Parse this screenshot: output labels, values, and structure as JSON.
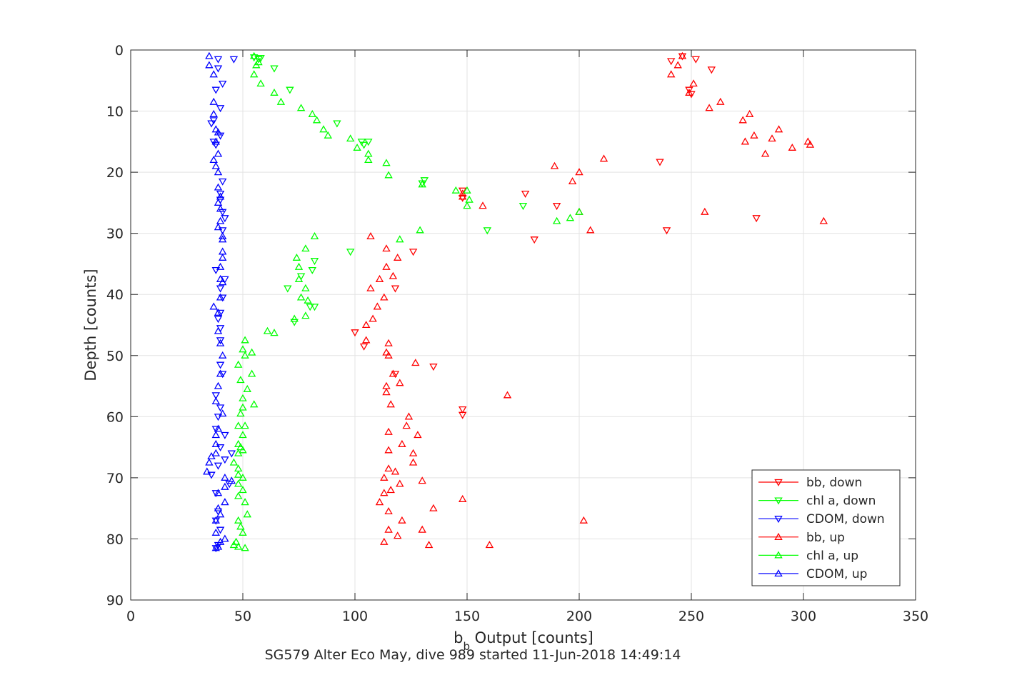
{
  "chart_data": {
    "type": "scatter",
    "caption": "SG579 Alter Eco May, dive 989 started 11-Jun-2018 14:49:14",
    "xlabel_main": "b",
    "xlabel_sub": "b",
    "xlabel_rest": " Output [counts]",
    "ylabel": "Depth [counts]",
    "xlim": [
      0,
      350
    ],
    "ylim": [
      0,
      90
    ],
    "y_reversed": true,
    "xticks": [
      0,
      50,
      100,
      150,
      200,
      250,
      300,
      350
    ],
    "yticks": [
      0,
      10,
      20,
      30,
      40,
      50,
      60,
      70,
      80,
      90
    ],
    "grid": true,
    "legend_position": "bottom-right",
    "series": [
      {
        "name": "bb, down",
        "color": "#ff0000",
        "marker": "triangle-down",
        "points": [
          [
            246,
            1
          ],
          [
            252,
            1.5
          ],
          [
            241,
            1.8
          ],
          [
            259,
            3.2
          ],
          [
            249,
            6.5
          ],
          [
            250,
            7.2
          ],
          [
            236,
            18.3
          ],
          [
            176,
            23.5
          ],
          [
            148,
            23
          ],
          [
            148,
            24.2
          ],
          [
            190,
            25.5
          ],
          [
            239,
            29.5
          ],
          [
            180,
            31
          ],
          [
            279,
            27.5
          ],
          [
            126,
            33
          ],
          [
            118,
            39
          ],
          [
            100,
            46.2
          ],
          [
            104,
            48.5
          ],
          [
            135,
            51.8
          ],
          [
            118,
            53
          ],
          [
            148,
            58.8
          ],
          [
            148,
            59.7
          ]
        ]
      },
      {
        "name": "chl a, down",
        "color": "#00ff00",
        "marker": "triangle-down",
        "points": [
          [
            55,
            1.2
          ],
          [
            58,
            1.3
          ],
          [
            57,
            1.5
          ],
          [
            64,
            3
          ],
          [
            71,
            6.5
          ],
          [
            92,
            12
          ],
          [
            103,
            15
          ],
          [
            106,
            15
          ],
          [
            104,
            15.5
          ],
          [
            98,
            33
          ],
          [
            82,
            34.5
          ],
          [
            81,
            36
          ],
          [
            76,
            37
          ],
          [
            70,
            39
          ],
          [
            80,
            42
          ],
          [
            82,
            42
          ],
          [
            73,
            44.5
          ],
          [
            159,
            29.5
          ],
          [
            175,
            25.5
          ],
          [
            131,
            21.3
          ],
          [
            130,
            21.8
          ]
        ]
      },
      {
        "name": "CDOM, down",
        "color": "#0000ff",
        "marker": "triangle-down",
        "points": [
          [
            39,
            1.5
          ],
          [
            46,
            1.5
          ],
          [
            39,
            3
          ],
          [
            41,
            5.5
          ],
          [
            38,
            6.5
          ],
          [
            40,
            9.5
          ],
          [
            37,
            11.5
          ],
          [
            36,
            12
          ],
          [
            40,
            14
          ],
          [
            37,
            15
          ],
          [
            38,
            15.5
          ],
          [
            41,
            21.5
          ],
          [
            40,
            23.5
          ],
          [
            40,
            24.5
          ],
          [
            41,
            26.5
          ],
          [
            42,
            27.5
          ],
          [
            41,
            29.5
          ],
          [
            38,
            36
          ],
          [
            42,
            37.5
          ],
          [
            40,
            39
          ],
          [
            41,
            40.5
          ],
          [
            40,
            43
          ],
          [
            39,
            44
          ],
          [
            40,
            45.5
          ],
          [
            40,
            47.5
          ],
          [
            40,
            51.5
          ],
          [
            41,
            53
          ],
          [
            38,
            56.5
          ],
          [
            40,
            58.5
          ],
          [
            39,
            60
          ],
          [
            38,
            62
          ],
          [
            42,
            63
          ],
          [
            40,
            65
          ],
          [
            45,
            66
          ],
          [
            42,
            67
          ],
          [
            39,
            68
          ],
          [
            36,
            69.5
          ],
          [
            44,
            71
          ],
          [
            38,
            72.5
          ],
          [
            39,
            75.5
          ],
          [
            38,
            77
          ],
          [
            40,
            78.5
          ],
          [
            39,
            81
          ],
          [
            38,
            81.5
          ]
        ]
      },
      {
        "name": "bb, up",
        "color": "#ff0000",
        "marker": "triangle-up",
        "points": [
          [
            246,
            1
          ],
          [
            244,
            2.5
          ],
          [
            241,
            4
          ],
          [
            251,
            5.5
          ],
          [
            249,
            7
          ],
          [
            258,
            9.5
          ],
          [
            263,
            8.5
          ],
          [
            276,
            10.5
          ],
          [
            273,
            11.5
          ],
          [
            289,
            13
          ],
          [
            278,
            14
          ],
          [
            286,
            14.5
          ],
          [
            274,
            15
          ],
          [
            295,
            16
          ],
          [
            283,
            17
          ],
          [
            302,
            15
          ],
          [
            303,
            15.5
          ],
          [
            211,
            17.8
          ],
          [
            189,
            19
          ],
          [
            200,
            20
          ],
          [
            197,
            21.5
          ],
          [
            148,
            23.5
          ],
          [
            148,
            24
          ],
          [
            157,
            25.5
          ],
          [
            256,
            26.5
          ],
          [
            200,
            26.5
          ],
          [
            309,
            28
          ],
          [
            205,
            29.5
          ],
          [
            107,
            30.5
          ],
          [
            114,
            32.5
          ],
          [
            119,
            34
          ],
          [
            114,
            35.5
          ],
          [
            117,
            37
          ],
          [
            111,
            37.5
          ],
          [
            107,
            39
          ],
          [
            113,
            40.5
          ],
          [
            110,
            42
          ],
          [
            108,
            44
          ],
          [
            105,
            45
          ],
          [
            105,
            47.5
          ],
          [
            115,
            48
          ],
          [
            115,
            50
          ],
          [
            114,
            49.5
          ],
          [
            127,
            51.2
          ],
          [
            117,
            53
          ],
          [
            120,
            54.5
          ],
          [
            114,
            55
          ],
          [
            114,
            56
          ],
          [
            168,
            56.5
          ],
          [
            116,
            58
          ],
          [
            124,
            60
          ],
          [
            123,
            61.5
          ],
          [
            115,
            62.5
          ],
          [
            128,
            63
          ],
          [
            121,
            64.5
          ],
          [
            115,
            65.5
          ],
          [
            126,
            66
          ],
          [
            126,
            67.5
          ],
          [
            115,
            68.5
          ],
          [
            118,
            69
          ],
          [
            113,
            70
          ],
          [
            130,
            70.5
          ],
          [
            120,
            71
          ],
          [
            116,
            72
          ],
          [
            113,
            72.5
          ],
          [
            111,
            74
          ],
          [
            148,
            73.5
          ],
          [
            135,
            75
          ],
          [
            115,
            75.5
          ],
          [
            121,
            77
          ],
          [
            202,
            77
          ],
          [
            115,
            78.5
          ],
          [
            130,
            78.5
          ],
          [
            119,
            79.5
          ],
          [
            113,
            80.5
          ],
          [
            133,
            81
          ],
          [
            160,
            81
          ]
        ]
      },
      {
        "name": "chl a, up",
        "color": "#00ff00",
        "marker": "triangle-up",
        "points": [
          [
            55,
            1
          ],
          [
            57,
            2
          ],
          [
            56,
            2.5
          ],
          [
            55,
            4
          ],
          [
            58,
            5.5
          ],
          [
            64,
            7
          ],
          [
            67,
            8.5
          ],
          [
            76,
            9.5
          ],
          [
            81,
            10.5
          ],
          [
            83,
            11.5
          ],
          [
            86,
            13
          ],
          [
            88,
            14
          ],
          [
            98,
            14.5
          ],
          [
            101,
            16
          ],
          [
            106,
            17
          ],
          [
            106,
            18
          ],
          [
            114,
            18.5
          ],
          [
            115,
            20.5
          ],
          [
            130,
            22
          ],
          [
            145,
            23
          ],
          [
            150,
            23
          ],
          [
            151,
            24.5
          ],
          [
            150,
            25.5
          ],
          [
            200,
            26.5
          ],
          [
            196,
            27.5
          ],
          [
            190,
            28
          ],
          [
            129,
            29.5
          ],
          [
            120,
            31
          ],
          [
            82,
            30.5
          ],
          [
            78,
            32.5
          ],
          [
            74,
            34
          ],
          [
            75,
            35.5
          ],
          [
            75,
            37.5
          ],
          [
            78,
            39
          ],
          [
            76,
            40.5
          ],
          [
            79,
            41
          ],
          [
            78,
            43.5
          ],
          [
            73,
            44
          ],
          [
            61,
            46
          ],
          [
            64,
            46.3
          ],
          [
            51,
            47.5
          ],
          [
            50,
            49
          ],
          [
            54,
            49.5
          ],
          [
            51,
            50
          ],
          [
            48,
            51.5
          ],
          [
            54,
            53
          ],
          [
            49,
            54
          ],
          [
            52,
            55.5
          ],
          [
            50,
            57
          ],
          [
            55,
            58
          ],
          [
            50,
            58.5
          ],
          [
            49,
            59.5
          ],
          [
            48,
            61.5
          ],
          [
            51,
            61.5
          ],
          [
            50,
            63
          ],
          [
            48,
            64.5
          ],
          [
            49,
            65
          ],
          [
            50,
            65.5
          ],
          [
            48,
            66
          ],
          [
            46,
            67.5
          ],
          [
            48,
            68.5
          ],
          [
            48,
            69.5
          ],
          [
            50,
            70
          ],
          [
            48,
            71
          ],
          [
            50,
            72
          ],
          [
            48,
            73
          ],
          [
            51,
            74
          ],
          [
            52,
            76
          ],
          [
            48,
            77
          ],
          [
            49,
            78
          ],
          [
            50,
            79
          ],
          [
            47,
            80.5
          ],
          [
            46,
            81
          ],
          [
            48,
            81.3
          ],
          [
            51,
            81.5
          ]
        ]
      },
      {
        "name": "CDOM, up",
        "color": "#0000ff",
        "marker": "triangle-up",
        "points": [
          [
            35,
            1
          ],
          [
            35,
            2.5
          ],
          [
            37,
            4
          ],
          [
            37,
            8.5
          ],
          [
            37,
            10.5
          ],
          [
            38,
            13
          ],
          [
            39,
            13.5
          ],
          [
            38,
            15
          ],
          [
            39,
            17
          ],
          [
            37,
            18
          ],
          [
            38,
            19
          ],
          [
            39,
            20
          ],
          [
            39,
            22.5
          ],
          [
            40,
            24
          ],
          [
            39,
            25
          ],
          [
            40,
            26
          ],
          [
            40,
            28
          ],
          [
            39,
            29
          ],
          [
            41,
            30.5
          ],
          [
            41,
            31
          ],
          [
            41,
            33
          ],
          [
            41,
            34
          ],
          [
            40,
            35.5
          ],
          [
            40,
            37.5
          ],
          [
            41,
            38
          ],
          [
            40,
            40.5
          ],
          [
            37,
            42
          ],
          [
            39,
            43
          ],
          [
            39,
            46
          ],
          [
            40,
            48
          ],
          [
            41,
            50
          ],
          [
            40,
            53
          ],
          [
            39,
            55
          ],
          [
            38,
            57.5
          ],
          [
            41,
            59.5
          ],
          [
            39,
            62
          ],
          [
            38,
            63
          ],
          [
            38,
            64.5
          ],
          [
            38,
            66
          ],
          [
            36,
            66.5
          ],
          [
            35,
            67.5
          ],
          [
            34,
            69
          ],
          [
            42,
            70
          ],
          [
            45,
            70.5
          ],
          [
            42,
            71.5
          ],
          [
            39,
            72.5
          ],
          [
            42,
            74
          ],
          [
            39,
            75
          ],
          [
            40,
            76
          ],
          [
            38,
            77
          ],
          [
            38,
            79
          ],
          [
            42,
            80
          ],
          [
            40,
            80.5
          ],
          [
            39,
            81.3
          ],
          [
            38,
            81.5
          ]
        ]
      }
    ]
  }
}
